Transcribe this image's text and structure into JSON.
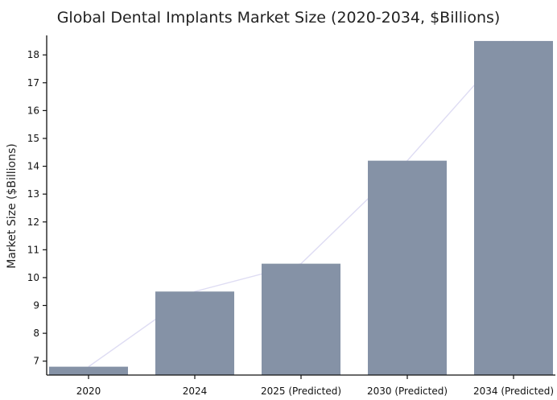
{
  "chart_data": {
    "type": "bar",
    "title": "Global Dental Implants Market Size (2020-2034, $Billions)",
    "xlabel": "",
    "ylabel": "Market Size ($Billions)",
    "categories": [
      "2020",
      "2024",
      "2025 (Predicted)",
      "2030 (Predicted)",
      "2034 (Predicted)"
    ],
    "values": [
      6.8,
      9.5,
      10.5,
      14.2,
      18.5
    ],
    "ylim": [
      6.5,
      18.7
    ],
    "yticks": [
      7,
      8,
      9,
      10,
      11,
      12,
      13,
      14,
      15,
      16,
      17,
      18
    ],
    "grid": false,
    "trend_line": true,
    "colors": {
      "bar": "#8592a6",
      "trend": "#dedcf3",
      "axis": "#111111"
    }
  }
}
